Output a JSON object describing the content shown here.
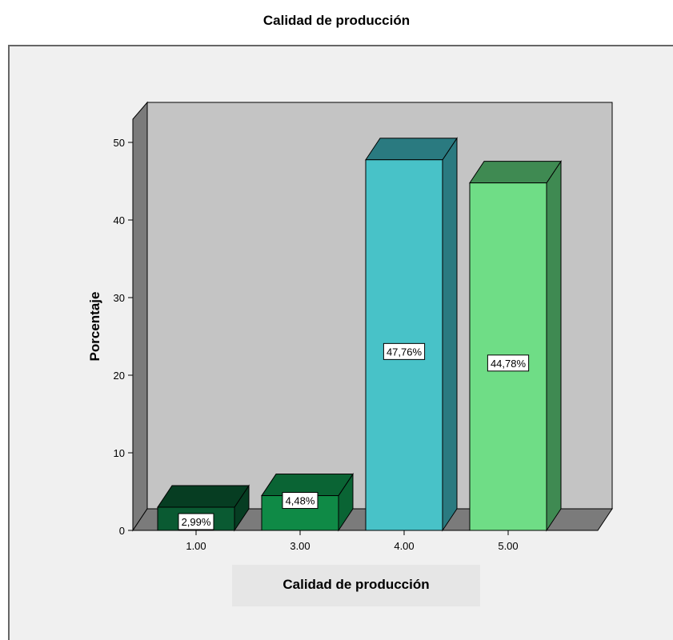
{
  "chart_data": {
    "type": "bar",
    "title": "Calidad de producción",
    "xlabel": "Calidad de producción",
    "ylabel": "Porcentaje",
    "categories": [
      "1.00",
      "3.00",
      "4.00",
      "5.00"
    ],
    "values": [
      2.99,
      4.48,
      47.76,
      44.78
    ],
    "data_labels": [
      "2,99%",
      "4,48%",
      "47,76%",
      "44,78%"
    ],
    "yticks": [
      "0",
      "10",
      "20",
      "30",
      "40",
      "50"
    ],
    "ylim": [
      0,
      55
    ],
    "colors": {
      "front": [
        "#0a5a32",
        "#0f8a46",
        "#48c2c8",
        "#6fdd86"
      ],
      "side": [
        "#063d22",
        "#0a6434",
        "#2a7a80",
        "#3f8a52"
      ],
      "top": [
        "#063d22",
        "#0a6434",
        "#2a7a80",
        "#3f8a52"
      ]
    },
    "background_colors": {
      "frame": "#f0f0f0",
      "plot": "#c4c4c4",
      "floor": "#7b7b7b"
    },
    "legend": "none",
    "grid": false
  }
}
